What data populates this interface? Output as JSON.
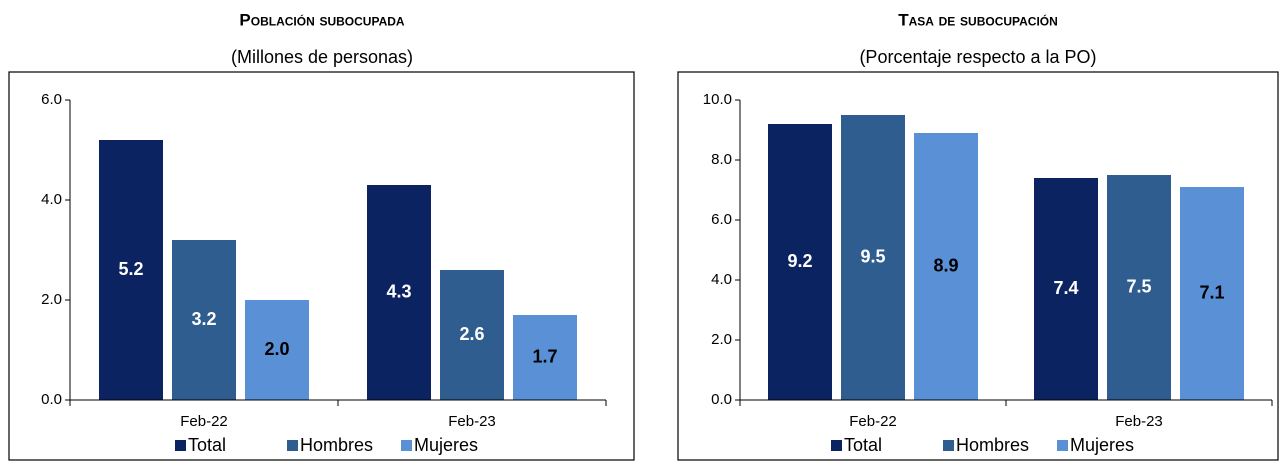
{
  "chart_data": [
    {
      "type": "bar",
      "title": "Población subocupada",
      "subtitle": "(Millones de personas)",
      "categories": [
        "Feb-22",
        "Feb-23"
      ],
      "series": [
        {
          "name": "Total",
          "color": "#0b2461",
          "values": [
            5.2,
            4.3
          ],
          "value_labels": [
            "5.2",
            "4.3"
          ]
        },
        {
          "name": "Hombres",
          "color": "#2f5d8f",
          "values": [
            3.2,
            2.6
          ],
          "value_labels": [
            "3.2",
            "2.6"
          ]
        },
        {
          "name": "Mujeres",
          "color": "#5a91d6",
          "values": [
            2.0,
            1.7
          ],
          "value_labels": [
            "2.0",
            "1.7"
          ]
        }
      ],
      "ylim": [
        0,
        6
      ],
      "yticks": [
        {
          "value": 0,
          "label": "0.0"
        },
        {
          "value": 2,
          "label": "2.0"
        },
        {
          "value": 4,
          "label": "4.0"
        },
        {
          "value": 6,
          "label": "6.0"
        }
      ],
      "legend": "bottom"
    },
    {
      "type": "bar",
      "title": "Tasa de subocupación",
      "subtitle": "(Porcentaje respecto a la PO)",
      "categories": [
        "Feb-22",
        "Feb-23"
      ],
      "series": [
        {
          "name": "Total",
          "color": "#0b2461",
          "values": [
            9.2,
            7.4
          ],
          "value_labels": [
            "9.2",
            "7.4"
          ]
        },
        {
          "name": "Hombres",
          "color": "#2f5d8f",
          "values": [
            9.5,
            7.5
          ],
          "value_labels": [
            "9.5",
            "7.5"
          ]
        },
        {
          "name": "Mujeres",
          "color": "#5a91d6",
          "values": [
            8.9,
            7.1
          ],
          "value_labels": [
            "8.9",
            "7.1"
          ]
        }
      ],
      "ylim": [
        0,
        10
      ],
      "yticks": [
        {
          "value": 0,
          "label": "0.0"
        },
        {
          "value": 2,
          "label": "2.0"
        },
        {
          "value": 4,
          "label": "4.0"
        },
        {
          "value": 6,
          "label": "6.0"
        },
        {
          "value": 8,
          "label": "8.0"
        },
        {
          "value": 10,
          "label": "10.0"
        }
      ],
      "legend": "bottom"
    }
  ]
}
